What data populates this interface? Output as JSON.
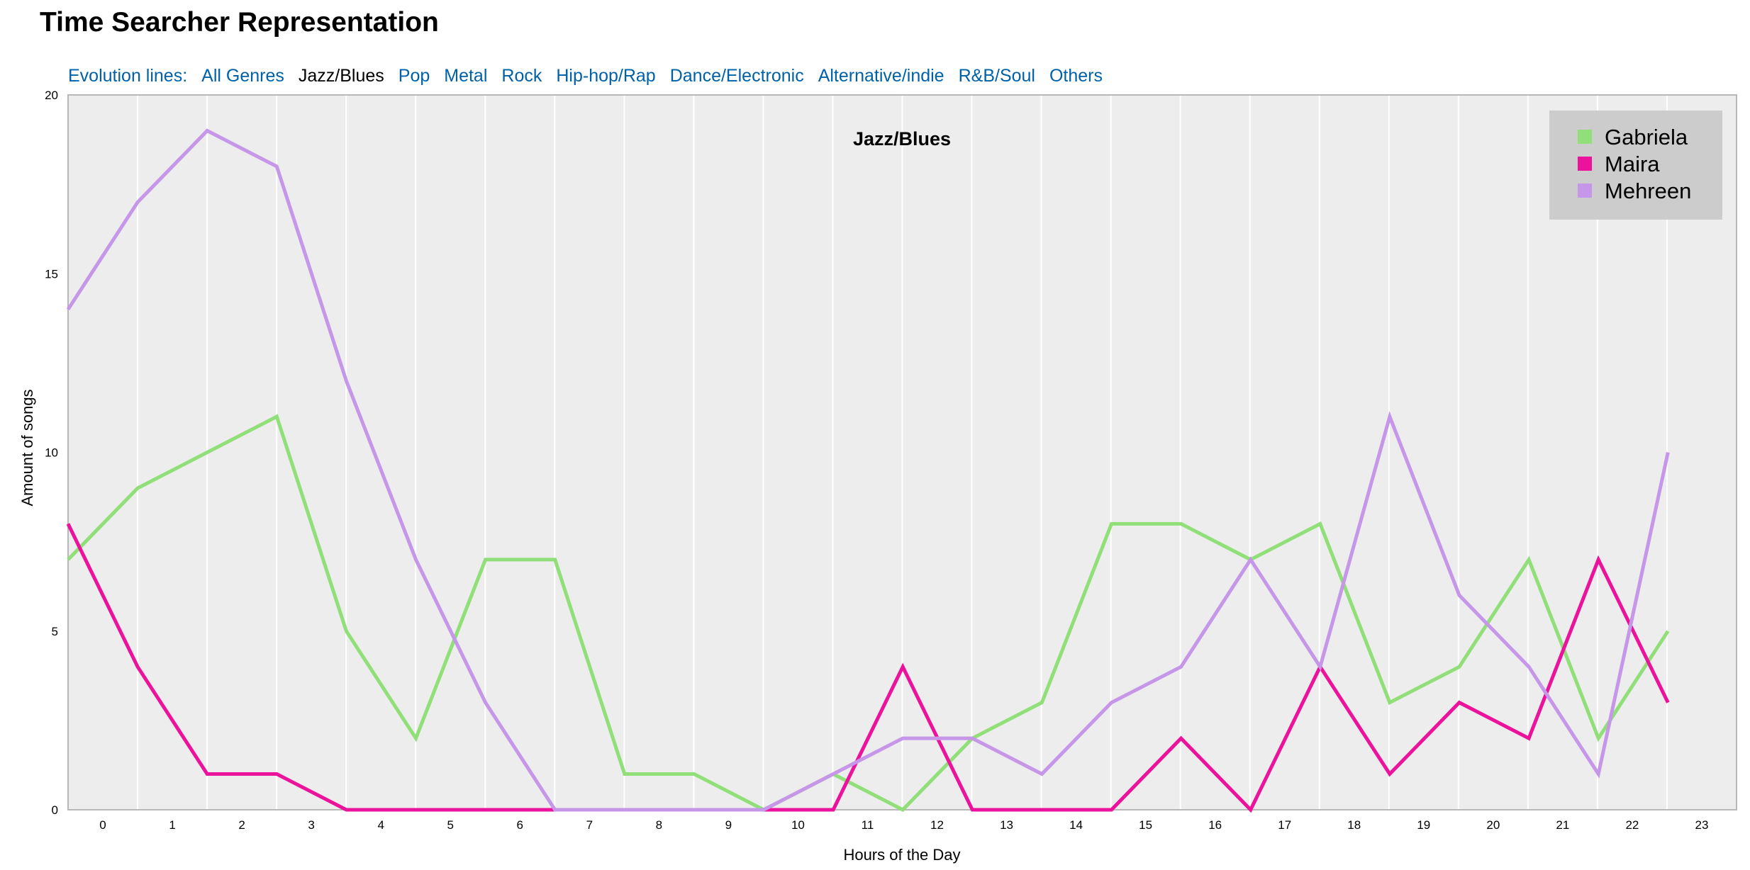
{
  "page": {
    "title": "Time Searcher Representation"
  },
  "nav": {
    "label": "Evolution lines:",
    "items": [
      {
        "label": "All Genres",
        "active": false
      },
      {
        "label": "Jazz/Blues",
        "active": true
      },
      {
        "label": "Pop",
        "active": false
      },
      {
        "label": "Metal",
        "active": false
      },
      {
        "label": "Rock",
        "active": false
      },
      {
        "label": "Hip-hop/Rap",
        "active": false
      },
      {
        "label": "Dance/Electronic",
        "active": false
      },
      {
        "label": "Alternative/indie",
        "active": false
      },
      {
        "label": "R&B/Soul",
        "active": false
      },
      {
        "label": "Others",
        "active": false
      }
    ]
  },
  "chart_data": {
    "type": "line",
    "title": "Jazz/Blues",
    "xlabel": "Hours of the Day",
    "ylabel": "Amount of songs",
    "x": [
      0,
      1,
      2,
      3,
      4,
      5,
      6,
      7,
      8,
      9,
      10,
      11,
      12,
      13,
      14,
      15,
      16,
      17,
      18,
      19,
      20,
      21,
      22,
      23
    ],
    "ylim": [
      0,
      20
    ],
    "yticks": [
      0,
      5,
      10,
      15,
      20
    ],
    "grid": true,
    "legend_position": "top-right",
    "series": [
      {
        "name": "Gabriela",
        "color": "#90df78",
        "values": [
          7,
          9,
          10,
          11,
          5,
          2,
          7,
          7,
          1,
          1,
          0,
          1,
          0,
          2,
          3,
          8,
          8,
          7,
          8,
          3,
          4,
          7,
          2,
          5
        ]
      },
      {
        "name": "Maira",
        "color": "#ec139c",
        "values": [
          8,
          4,
          1,
          1,
          0,
          0,
          0,
          0,
          0,
          0,
          0,
          0,
          4,
          0,
          0,
          0,
          2,
          0,
          4,
          1,
          3,
          2,
          7,
          3
        ]
      },
      {
        "name": "Mehreen",
        "color": "#c696e8",
        "values": [
          14,
          17,
          19,
          18,
          12,
          7,
          3,
          0,
          0,
          0,
          0,
          1,
          2,
          2,
          1,
          3,
          4,
          7,
          4,
          11,
          6,
          4,
          1,
          10
        ]
      }
    ]
  }
}
